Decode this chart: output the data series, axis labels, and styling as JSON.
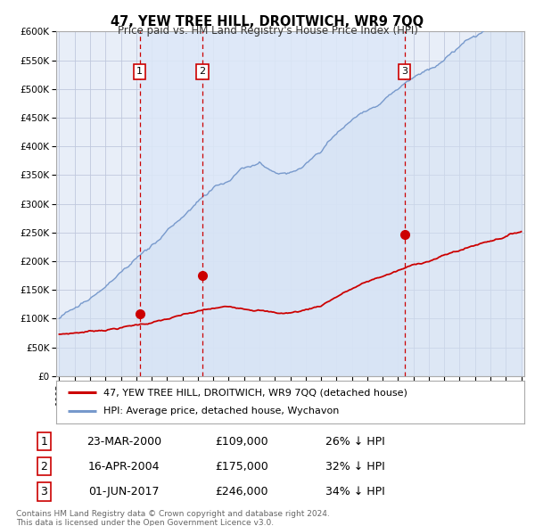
{
  "title": "47, YEW TREE HILL, DROITWICH, WR9 7QQ",
  "subtitle": "Price paid vs. HM Land Registry's House Price Index (HPI)",
  "background_color": "#ffffff",
  "plot_bg_color": "#e8eef8",
  "grid_color": "#c0c8dd",
  "red_line_color": "#cc0000",
  "blue_line_color": "#7799cc",
  "blue_fill_color": "#d4e2f4",
  "shade_color": "#dde8f8",
  "ylim": [
    0,
    600000
  ],
  "yticks": [
    0,
    50000,
    100000,
    150000,
    200000,
    250000,
    300000,
    350000,
    400000,
    450000,
    500000,
    550000,
    600000
  ],
  "ytick_labels": [
    "£0",
    "£50K",
    "£100K",
    "£150K",
    "£200K",
    "£250K",
    "£300K",
    "£350K",
    "£400K",
    "£450K",
    "£500K",
    "£550K",
    "£600K"
  ],
  "xmin_year": 1995,
  "xmax_year": 2025,
  "xticks": [
    1995,
    1996,
    1997,
    1998,
    1999,
    2000,
    2001,
    2002,
    2003,
    2004,
    2005,
    2006,
    2007,
    2008,
    2009,
    2010,
    2011,
    2012,
    2013,
    2014,
    2015,
    2016,
    2017,
    2018,
    2019,
    2020,
    2021,
    2022,
    2023,
    2024,
    2025
  ],
  "sale_dates": [
    2000.22,
    2004.29,
    2017.42
  ],
  "sale_prices": [
    109000,
    175000,
    246000
  ],
  "sale_labels": [
    "1",
    "2",
    "3"
  ],
  "sale_info": [
    {
      "num": "1",
      "date": "23-MAR-2000",
      "price": "£109,000",
      "hpi": "26% ↓ HPI"
    },
    {
      "num": "2",
      "date": "16-APR-2004",
      "price": "£175,000",
      "hpi": "32% ↓ HPI"
    },
    {
      "num": "3",
      "date": "01-JUN-2017",
      "price": "£246,000",
      "hpi": "34% ↓ HPI"
    }
  ],
  "legend_line1": "47, YEW TREE HILL, DROITWICH, WR9 7QQ (detached house)",
  "legend_line2": "HPI: Average price, detached house, Wychavon",
  "footnote1": "Contains HM Land Registry data © Crown copyright and database right 2024.",
  "footnote2": "This data is licensed under the Open Government Licence v3.0."
}
